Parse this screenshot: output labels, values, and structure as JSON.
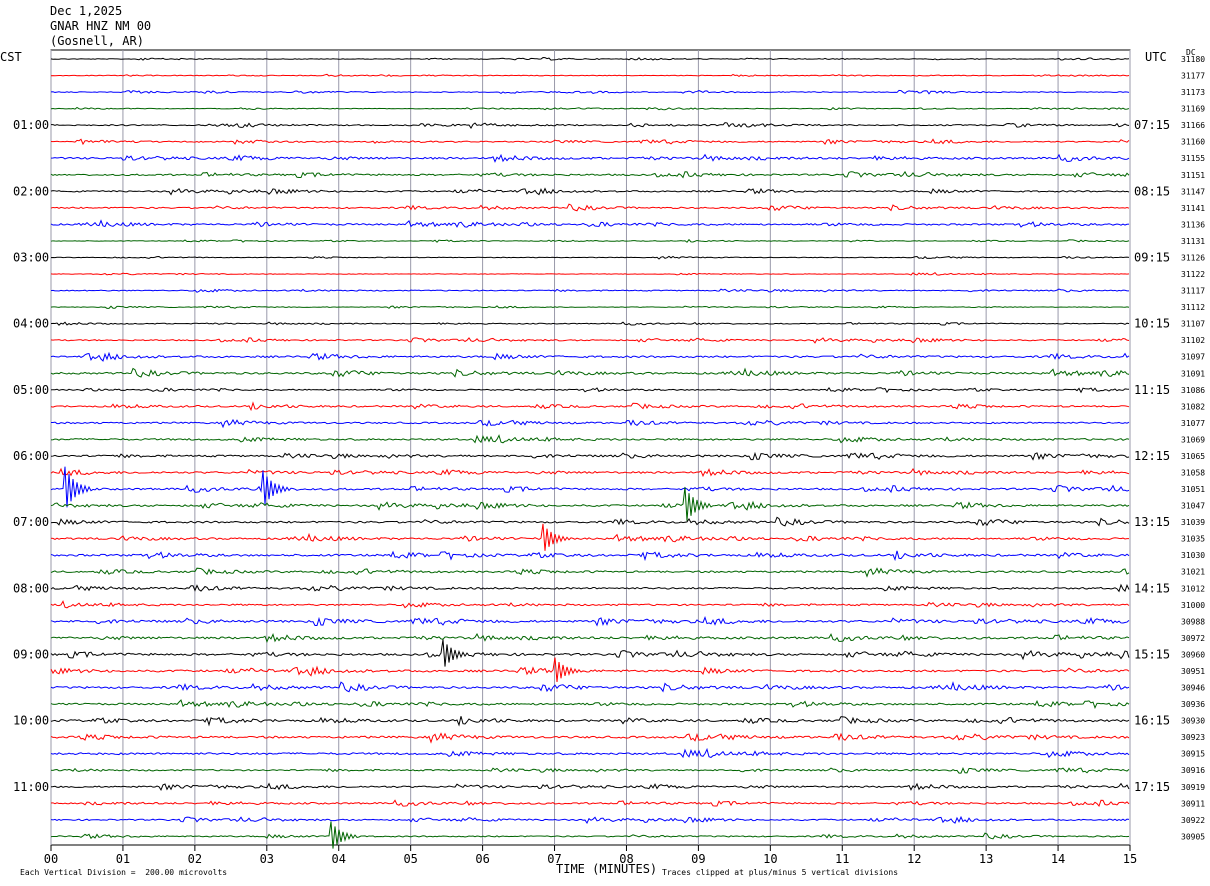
{
  "header": {
    "date": "Dec 1,2025",
    "station": "GNAR HNZ NM 00",
    "location": "(Gosnell, AR)"
  },
  "left_tz": "CST",
  "right_tz": "UTC",
  "dc_label": "DC",
  "footer": {
    "scale_note": "Each Vertical Division =  200.00 microvolts",
    "clip_note": "Traces clipped at plus/minus 5 vertical divisions"
  },
  "colors": {
    "trace_cycle": [
      "#000000",
      "#ff0000",
      "#0000ff",
      "#006400"
    ],
    "grid_minor": "#9999aa",
    "frame": "#000000"
  },
  "chart_data": {
    "type": "line",
    "title": "",
    "xlabel": "TIME (MINUTES)",
    "ylabel": "",
    "xlim": [
      0,
      15
    ],
    "x_ticks": [
      "00",
      "01",
      "02",
      "03",
      "04",
      "05",
      "06",
      "07",
      "08",
      "09",
      "10",
      "11",
      "12",
      "13",
      "14",
      "15"
    ],
    "traces_per_hour": 4,
    "trace_minutes": 15,
    "left_hour_labels": [
      "01:00",
      "02:00",
      "03:00",
      "04:00",
      "05:00",
      "06:00",
      "07:00",
      "08:00",
      "09:00",
      "10:00",
      "11:00"
    ],
    "right_hour_labels": [
      "07:15",
      "08:15",
      "09:15",
      "10:15",
      "11:15",
      "12:15",
      "13:15",
      "14:15",
      "15:15",
      "16:15",
      "17:15"
    ],
    "dc_offsets": [
      "31180",
      "31177",
      "31173",
      "31169",
      "31166",
      "31160",
      "31155",
      "31151",
      "31147",
      "31141",
      "31136",
      "31131",
      "31126",
      "31122",
      "31117",
      "31112",
      "31107",
      "31102",
      "31097",
      "31091",
      "31086",
      "31082",
      "31077",
      "31069",
      "31065",
      "31058",
      "31051",
      "31047",
      "31039",
      "31035",
      "31030",
      "31021",
      "31012",
      "31000",
      "30988",
      "30972",
      "30960",
      "30951",
      "30946",
      "30936",
      "30930",
      "30923",
      "30915",
      "30916",
      "30919",
      "30911",
      "30922",
      "30905"
    ],
    "trace_activity": [
      0.3,
      0.3,
      0.4,
      0.3,
      0.6,
      0.6,
      0.9,
      0.8,
      0.7,
      0.7,
      0.8,
      0.3,
      0.3,
      0.3,
      0.5,
      0.3,
      0.4,
      0.6,
      0.9,
      0.9,
      0.6,
      0.8,
      0.8,
      0.9,
      0.9,
      0.9,
      0.9,
      0.9,
      0.9,
      0.9,
      1.0,
      0.9,
      0.9,
      0.8,
      1.0,
      1.0,
      1.0,
      1.0,
      1.0,
      0.9,
      1.0,
      1.0,
      1.0,
      0.7,
      0.8,
      0.8,
      0.7,
      0.6
    ],
    "events": [
      {
        "trace": 26,
        "minute": 0.2,
        "amplitude": 3.0
      },
      {
        "trace": 26,
        "minute": 2.95,
        "amplitude": 2.5
      },
      {
        "trace": 27,
        "minute": 8.8,
        "amplitude": 2.5
      },
      {
        "trace": 29,
        "minute": 6.85,
        "amplitude": 2.0
      },
      {
        "trace": 36,
        "minute": 5.45,
        "amplitude": 2.0
      },
      {
        "trace": 37,
        "minute": 7.0,
        "amplitude": 1.8
      },
      {
        "trace": 47,
        "minute": 3.9,
        "amplitude": 2.0
      }
    ]
  }
}
